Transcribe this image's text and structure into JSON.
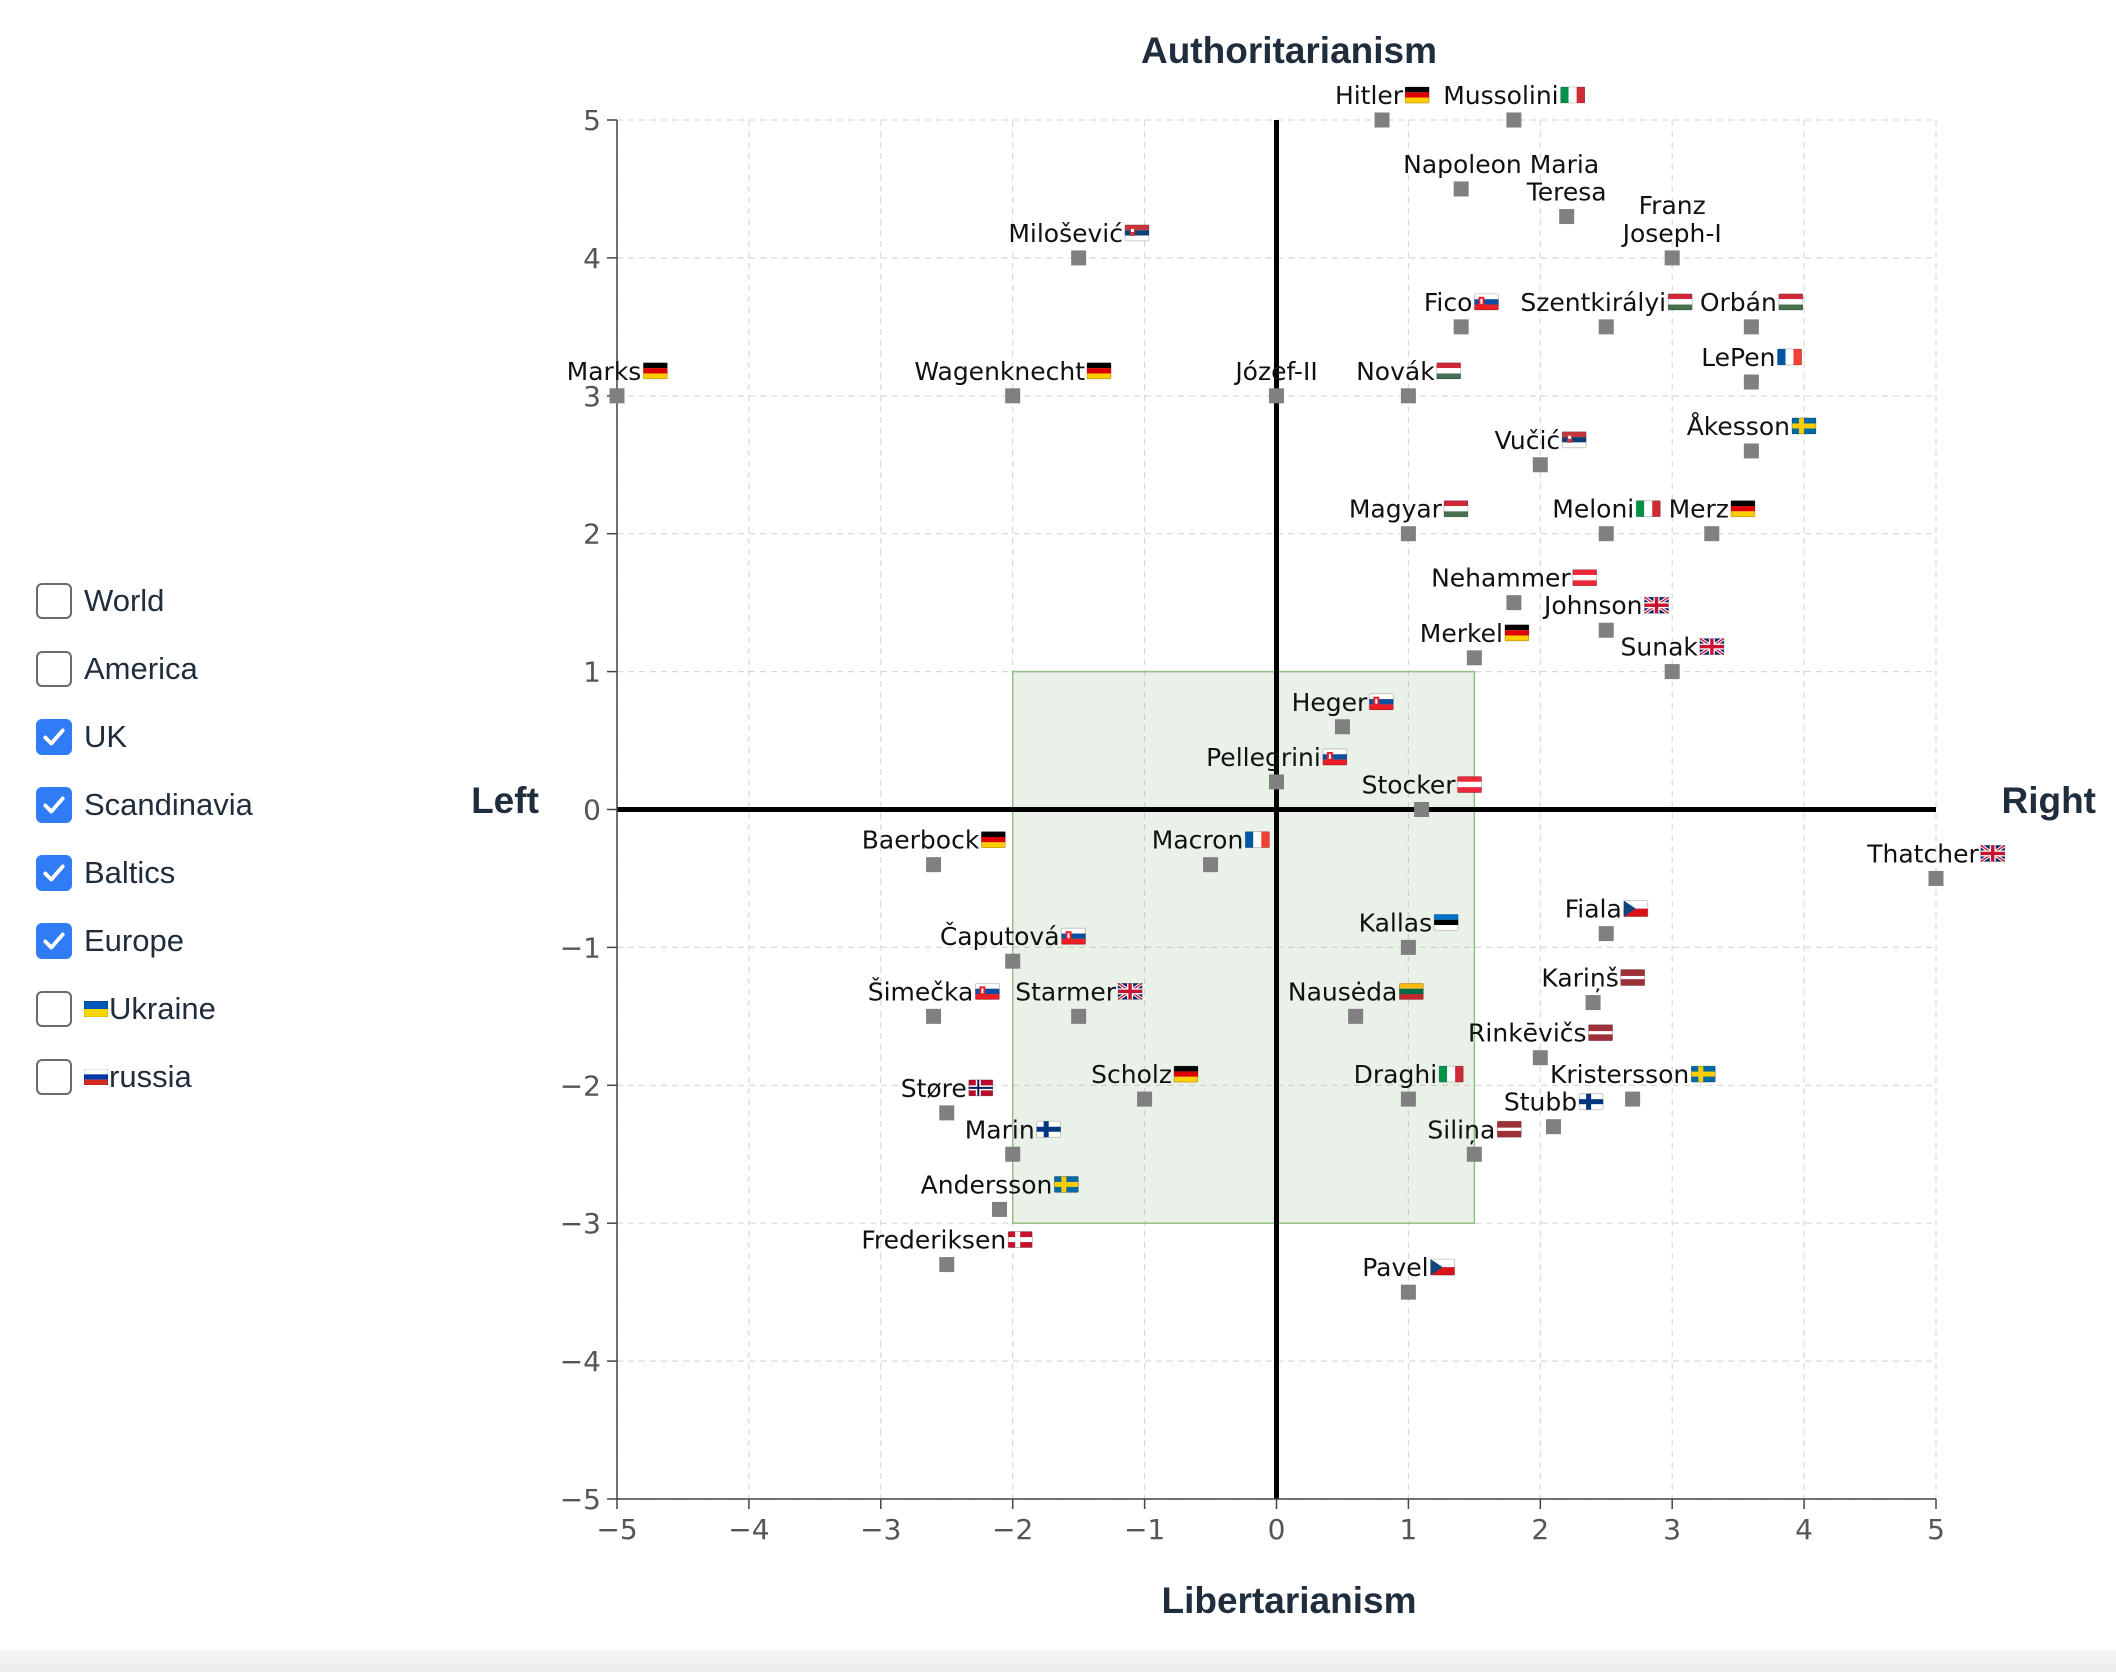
{
  "filters": [
    {
      "label": "World",
      "checked": false,
      "flag": null
    },
    {
      "label": "America",
      "checked": false,
      "flag": null
    },
    {
      "label": "UK",
      "checked": true,
      "flag": null
    },
    {
      "label": "Scandinavia",
      "checked": true,
      "flag": null
    },
    {
      "label": "Baltics",
      "checked": true,
      "flag": null
    },
    {
      "label": "Europe",
      "checked": true,
      "flag": null
    },
    {
      "label": "Ukraine",
      "checked": false,
      "flag": "UA"
    },
    {
      "label": "russia",
      "checked": false,
      "flag": "RU"
    }
  ],
  "chart_data": {
    "type": "scatter",
    "axis_titles": {
      "top": "Authoritarianism",
      "bottom": "Libertarianism",
      "left": "Left",
      "right": "Right"
    },
    "xlim": [
      -5,
      5
    ],
    "ylim": [
      -5,
      5
    ],
    "x_ticks": [
      "−5",
      "−4",
      "−3",
      "−2",
      "−1",
      "0",
      "1",
      "2",
      "3",
      "4",
      "5"
    ],
    "y_ticks": [
      "5",
      "4",
      "3",
      "2",
      "1",
      "0",
      "−1",
      "−2",
      "−3",
      "−4",
      "−5"
    ],
    "grid": true,
    "highlight_region": {
      "x": [
        -2,
        1.5
      ],
      "y": [
        -3,
        1
      ]
    },
    "points": [
      {
        "name": "Hitler",
        "flag": "DE",
        "x": 0.8,
        "y": 5
      },
      {
        "name": "Mussolini",
        "flag": "IT",
        "x": 1.8,
        "y": 5
      },
      {
        "name": "Napoleon",
        "flag": null,
        "x": 1.4,
        "y": 4.5
      },
      {
        "name": "Maria Teresa",
        "flag": null,
        "x": 2.2,
        "y": 4.3
      },
      {
        "name": "Franz Joseph-I",
        "flag": null,
        "x": 3,
        "y": 4
      },
      {
        "name": "Milošević",
        "flag": "RS",
        "x": -1.5,
        "y": 4
      },
      {
        "name": "Fico",
        "flag": "SK",
        "x": 1.4,
        "y": 3.5
      },
      {
        "name": "Szentkirályi",
        "flag": "HU",
        "x": 2.5,
        "y": 3.5
      },
      {
        "name": "Orbán",
        "flag": "HU",
        "x": 3.6,
        "y": 3.5
      },
      {
        "name": "Marks",
        "flag": "DE",
        "x": -5,
        "y": 3
      },
      {
        "name": "Wagenknecht",
        "flag": "DE",
        "x": -2,
        "y": 3
      },
      {
        "name": "Józef-II",
        "flag": null,
        "x": 0,
        "y": 3
      },
      {
        "name": "Novák",
        "flag": "HU",
        "x": 1,
        "y": 3
      },
      {
        "name": "LePen",
        "flag": "FR",
        "x": 3.6,
        "y": 3.1
      },
      {
        "name": "Åkesson",
        "flag": "SE",
        "x": 3.6,
        "y": 2.6
      },
      {
        "name": "Vučić",
        "flag": "RS",
        "x": 2,
        "y": 2.5
      },
      {
        "name": "Magyar",
        "flag": "HU",
        "x": 1,
        "y": 2
      },
      {
        "name": "Meloni",
        "flag": "IT",
        "x": 2.5,
        "y": 2
      },
      {
        "name": "Merz",
        "flag": "DE",
        "x": 3.3,
        "y": 2
      },
      {
        "name": "Nehammer",
        "flag": "AT",
        "x": 1.8,
        "y": 1.5
      },
      {
        "name": "Johnson",
        "flag": "GB",
        "x": 2.5,
        "y": 1.3
      },
      {
        "name": "Merkel",
        "flag": "DE",
        "x": 1.5,
        "y": 1.1
      },
      {
        "name": "Sunak",
        "flag": "GB",
        "x": 3,
        "y": 1
      },
      {
        "name": "Heger",
        "flag": "SK",
        "x": 0.5,
        "y": 0.6
      },
      {
        "name": "Pellegrini",
        "flag": "SK",
        "x": 0,
        "y": 0.2
      },
      {
        "name": "Stocker",
        "flag": "AT",
        "x": 1.1,
        "y": 0
      },
      {
        "name": "Thatcher",
        "flag": "GB",
        "x": 5,
        "y": -0.5
      },
      {
        "name": "Baerbock",
        "flag": "DE",
        "x": -2.6,
        "y": -0.4
      },
      {
        "name": "Macron",
        "flag": "FR",
        "x": -0.5,
        "y": -0.4
      },
      {
        "name": "Fiala",
        "flag": "CZ",
        "x": 2.5,
        "y": -0.9
      },
      {
        "name": "Kallas",
        "flag": "EE",
        "x": 1,
        "y": -1
      },
      {
        "name": "Čaputová",
        "flag": "SK",
        "x": -2,
        "y": -1.1
      },
      {
        "name": "Kariņš",
        "flag": "LV",
        "x": 2.4,
        "y": -1.4
      },
      {
        "name": "Šimečka",
        "flag": "SK",
        "x": -2.6,
        "y": -1.5
      },
      {
        "name": "Starmer",
        "flag": "GB",
        "x": -1.5,
        "y": -1.5
      },
      {
        "name": "Nausėda",
        "flag": "LT",
        "x": 0.6,
        "y": -1.5
      },
      {
        "name": "Rinkēvičs",
        "flag": "LV",
        "x": 2,
        "y": -1.8
      },
      {
        "name": "Scholz",
        "flag": "DE",
        "x": -1,
        "y": -2.1
      },
      {
        "name": "Draghi",
        "flag": "IT",
        "x": 1,
        "y": -2.1
      },
      {
        "name": "Kristersson",
        "flag": "SE",
        "x": 2.7,
        "y": -2.1
      },
      {
        "name": "Støre",
        "flag": "NO",
        "x": -2.5,
        "y": -2.2
      },
      {
        "name": "Stubb",
        "flag": "FI",
        "x": 2.1,
        "y": -2.3
      },
      {
        "name": "Marin",
        "flag": "FI",
        "x": -2,
        "y": -2.5
      },
      {
        "name": "Siliņa",
        "flag": "LV",
        "x": 1.5,
        "y": -2.5
      },
      {
        "name": "Andersson",
        "flag": "SE",
        "x": -2.1,
        "y": -2.9
      },
      {
        "name": "Frederiksen",
        "flag": "DK",
        "x": -2.5,
        "y": -3.3
      },
      {
        "name": "Pavel",
        "flag": "CZ",
        "x": 1,
        "y": -3.5
      }
    ]
  }
}
